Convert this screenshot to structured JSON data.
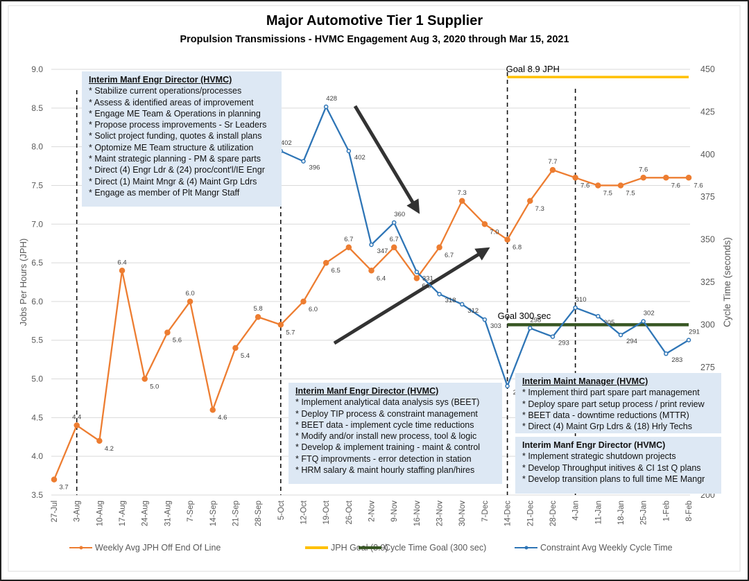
{
  "chart_data": {
    "type": "line",
    "title": "Major Automotive Tier 1 Supplier",
    "subtitle": "Propulsion Transmissions - HVMC Engagement Aug 3, 2020 through Mar 15, 2021",
    "ylabel": "Jobs Per Hours (JPH)",
    "y2label": "Cycle Time (seconds)",
    "ylim": [
      3.5,
      9.0
    ],
    "y2lim": [
      200,
      450
    ],
    "yticks": [
      "3.5",
      "4.0",
      "4.5",
      "5.0",
      "5.5",
      "6.0",
      "6.5",
      "7.0",
      "7.5",
      "8.0",
      "8.5",
      "9.0"
    ],
    "y2ticks": [
      "200",
      "225",
      "250",
      "275",
      "300",
      "325",
      "350",
      "375",
      "400",
      "425",
      "450"
    ],
    "categories": [
      "27-Jul",
      "3-Aug",
      "10-Aug",
      "17-Aug",
      "24-Aug",
      "31-Aug",
      "7-Sep",
      "14-Sep",
      "21-Sep",
      "28-Sep",
      "5-Oct",
      "12-Oct",
      "19-Oct",
      "26-Oct",
      "2-Nov",
      "9-Nov",
      "16-Nov",
      "23-Nov",
      "30-Nov",
      "7-Dec",
      "14-Dec",
      "21-Dec",
      "28-Dec",
      "4-Jan",
      "11-Jan",
      "18-Jan",
      "25-Jan",
      "1-Feb",
      "8-Feb"
    ],
    "series": [
      {
        "name": "Weekly Avg JPH Off End Of Line",
        "axis": "left",
        "color": "#ed7d31",
        "values": [
          3.7,
          4.4,
          4.2,
          6.4,
          5.0,
          5.6,
          6.0,
          4.6,
          5.4,
          5.8,
          5.7,
          6.0,
          6.5,
          6.7,
          6.4,
          6.7,
          6.3,
          6.7,
          7.3,
          7.0,
          6.8,
          7.3,
          7.7,
          7.6,
          7.5,
          7.5,
          7.6,
          7.6,
          7.6
        ]
      },
      {
        "name": "JPH Goal (8.9)",
        "axis": "left",
        "color": "#ffc000",
        "value": 8.9,
        "from": "14-Dec",
        "label": "Goal 8.9 JPH"
      },
      {
        "name": "Cycle Time Goal (300 sec)",
        "axis": "right",
        "color": "#375623",
        "value": 300,
        "from": "14-Dec",
        "label": "Goal 300 sec"
      },
      {
        "name": "Constraint Avg Weekly Cycle Time",
        "axis": "right",
        "color": "#2e75b6",
        "values": [
          null,
          null,
          null,
          null,
          null,
          null,
          null,
          null,
          null,
          null,
          402,
          396,
          428,
          402,
          347,
          360,
          331,
          318,
          312,
          303,
          264,
          298,
          293,
          310,
          305,
          294,
          302,
          283,
          291
        ]
      }
    ],
    "grid": true,
    "legend": "bottom"
  },
  "boxes": [
    {
      "title": "Interim Manf Engr Director (HVMC)",
      "items": [
        "* Stabilize current operations/processes",
        "* Assess & identified areas of improvement",
        "* Engage ME Team & Operations in planning",
        "* Propose process improvements - Sr Leaders",
        "* Solict project funding, quotes & install plans",
        "* Optomize ME Team structure & utilization",
        "* Maint strategic planning - PM & spare parts",
        "* Direct (4) Engr Ldr & (24) proc/cont'l/IE Engr",
        "* Direct (1) Maint Mngr & (4) Maint Grp Ldrs",
        "* Engage as member of Plt Mangr Staff"
      ]
    },
    {
      "title": "Interim Manf Engr Director (HVMC)",
      "items": [
        "* Implement analytical data analysis sys (BEET)",
        "* Deploy TIP process & constraint management",
        "* BEET data - implement cycle time reductions",
        "* Modify and/or install new process, tool & logic",
        "* Develop & implement training - maint & control",
        "* FTQ improvments - error detection in station",
        "* HRM salary & maint hourly staffing plan/hires"
      ]
    },
    {
      "title": "Interim Maint Manager (HVMC)",
      "items": [
        "* Implement third part spare part management",
        "* Deploy spare part setup process / print review",
        "* BEET data - downtime reductions (MTTR)",
        "* Direct (4) Maint Grp Ldrs & (18) Hrly Techs"
      ]
    },
    {
      "title": "Interim Manf Engr Director (HVMC)",
      "items": [
        "* Implement strategic shutdown projects",
        "* Develop Throughput initives & CI 1st Q plans",
        "* Develop transition plans to full time ME Mangr"
      ]
    }
  ]
}
